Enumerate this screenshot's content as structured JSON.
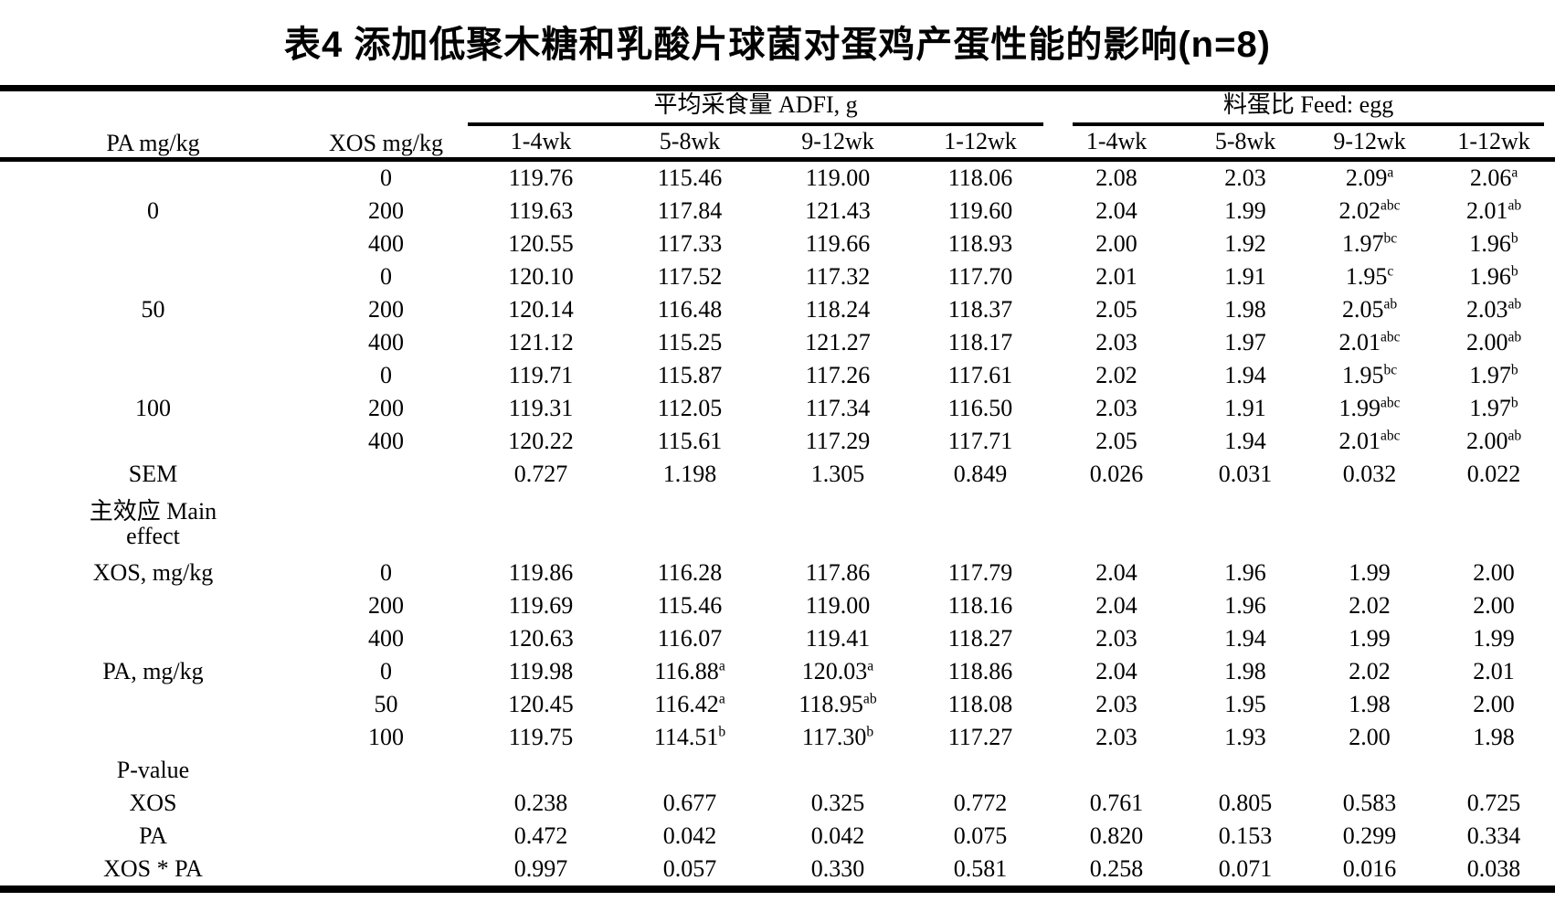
{
  "title": "表4 添加低聚木糖和乳酸片球菌对蛋鸡产蛋性能的影响(n=8)",
  "header": {
    "col_pa": "PA mg/kg",
    "col_xos": "XOS mg/kg",
    "group_adfi": "平均采食量 ADFI, g",
    "group_feed_egg": "料蛋比 Feed: egg",
    "subcols": [
      "1-4wk",
      "5-8wk",
      "9-12wk",
      "1-12wk"
    ]
  },
  "rows": [
    {
      "pa": "",
      "xos": "0",
      "cells": [
        "119.76",
        "115.46",
        "119.00",
        "118.06",
        "2.08",
        "2.03",
        "2.09^a",
        "2.06^a"
      ]
    },
    {
      "pa": "0",
      "xos": "200",
      "cells": [
        "119.63",
        "117.84",
        "121.43",
        "119.60",
        "2.04",
        "1.99",
        "2.02^abc",
        "2.01^ab"
      ]
    },
    {
      "pa": "",
      "xos": "400",
      "cells": [
        "120.55",
        "117.33",
        "119.66",
        "118.93",
        "2.00",
        "1.92",
        "1.97^bc",
        "1.96^b"
      ]
    },
    {
      "pa": "",
      "xos": "0",
      "cells": [
        "120.10",
        "117.52",
        "117.32",
        "117.70",
        "2.01",
        "1.91",
        "1.95^c",
        "1.96^b"
      ]
    },
    {
      "pa": "50",
      "xos": "200",
      "cells": [
        "120.14",
        "116.48",
        "118.24",
        "118.37",
        "2.05",
        "1.98",
        "2.05^ab",
        "2.03^ab"
      ]
    },
    {
      "pa": "",
      "xos": "400",
      "cells": [
        "121.12",
        "115.25",
        "121.27",
        "118.17",
        "2.03",
        "1.97",
        "2.01^abc",
        "2.00^ab"
      ]
    },
    {
      "pa": "",
      "xos": "0",
      "cells": [
        "119.71",
        "115.87",
        "117.26",
        "117.61",
        "2.02",
        "1.94",
        "1.95^bc",
        "1.97^b"
      ]
    },
    {
      "pa": "100",
      "xos": "200",
      "cells": [
        "119.31",
        "112.05",
        "117.34",
        "116.50",
        "2.03",
        "1.91",
        "1.99^abc",
        "1.97^b"
      ]
    },
    {
      "pa": "",
      "xos": "400",
      "cells": [
        "120.22",
        "115.61",
        "117.29",
        "117.71",
        "2.05",
        "1.94",
        "2.01^abc",
        "2.00^ab"
      ]
    },
    {
      "pa": "SEM",
      "xos": "",
      "cells": [
        "0.727",
        "1.198",
        "1.305",
        "0.849",
        "0.026",
        "0.031",
        "0.032",
        "0.022"
      ]
    },
    {
      "pa": "主效应 Main\neffect",
      "xos": "",
      "cells": [
        "",
        "",
        "",
        "",
        "",
        "",
        "",
        ""
      ],
      "tall": true
    },
    {
      "pa": "XOS, mg/kg",
      "xos": "0",
      "cells": [
        "119.86",
        "116.28",
        "117.86",
        "117.79",
        "2.04",
        "1.96",
        "1.99",
        "2.00"
      ]
    },
    {
      "pa": "",
      "xos": "200",
      "cells": [
        "119.69",
        "115.46",
        "119.00",
        "118.16",
        "2.04",
        "1.96",
        "2.02",
        "2.00"
      ]
    },
    {
      "pa": "",
      "xos": "400",
      "cells": [
        "120.63",
        "116.07",
        "119.41",
        "118.27",
        "2.03",
        "1.94",
        "1.99",
        "1.99"
      ]
    },
    {
      "pa": "PA, mg/kg",
      "xos": "0",
      "cells": [
        "119.98",
        "116.88^a",
        "120.03^a",
        "118.86",
        "2.04",
        "1.98",
        "2.02",
        "2.01"
      ]
    },
    {
      "pa": "",
      "xos": "50",
      "cells": [
        "120.45",
        "116.42^a",
        "118.95^ab",
        "118.08",
        "2.03",
        "1.95",
        "1.98",
        "2.00"
      ]
    },
    {
      "pa": "",
      "xos": "100",
      "cells": [
        "119.75",
        "114.51^b",
        "117.30^b",
        "117.27",
        "2.03",
        "1.93",
        "2.00",
        "1.98"
      ]
    },
    {
      "pa": "P-value",
      "xos": "",
      "cells": [
        "",
        "",
        "",
        "",
        "",
        "",
        "",
        ""
      ]
    },
    {
      "pa": "XOS",
      "xos": "",
      "cells": [
        "0.238",
        "0.677",
        "0.325",
        "0.772",
        "0.761",
        "0.805",
        "0.583",
        "0.725"
      ]
    },
    {
      "pa": "PA",
      "xos": "",
      "cells": [
        "0.472",
        "0.042",
        "0.042",
        "0.075",
        "0.820",
        "0.153",
        "0.299",
        "0.334"
      ]
    },
    {
      "pa": "XOS * PA",
      "xos": "",
      "cells": [
        "0.997",
        "0.057",
        "0.330",
        "0.581",
        "0.258",
        "0.071",
        "0.016",
        "0.038"
      ]
    }
  ]
}
